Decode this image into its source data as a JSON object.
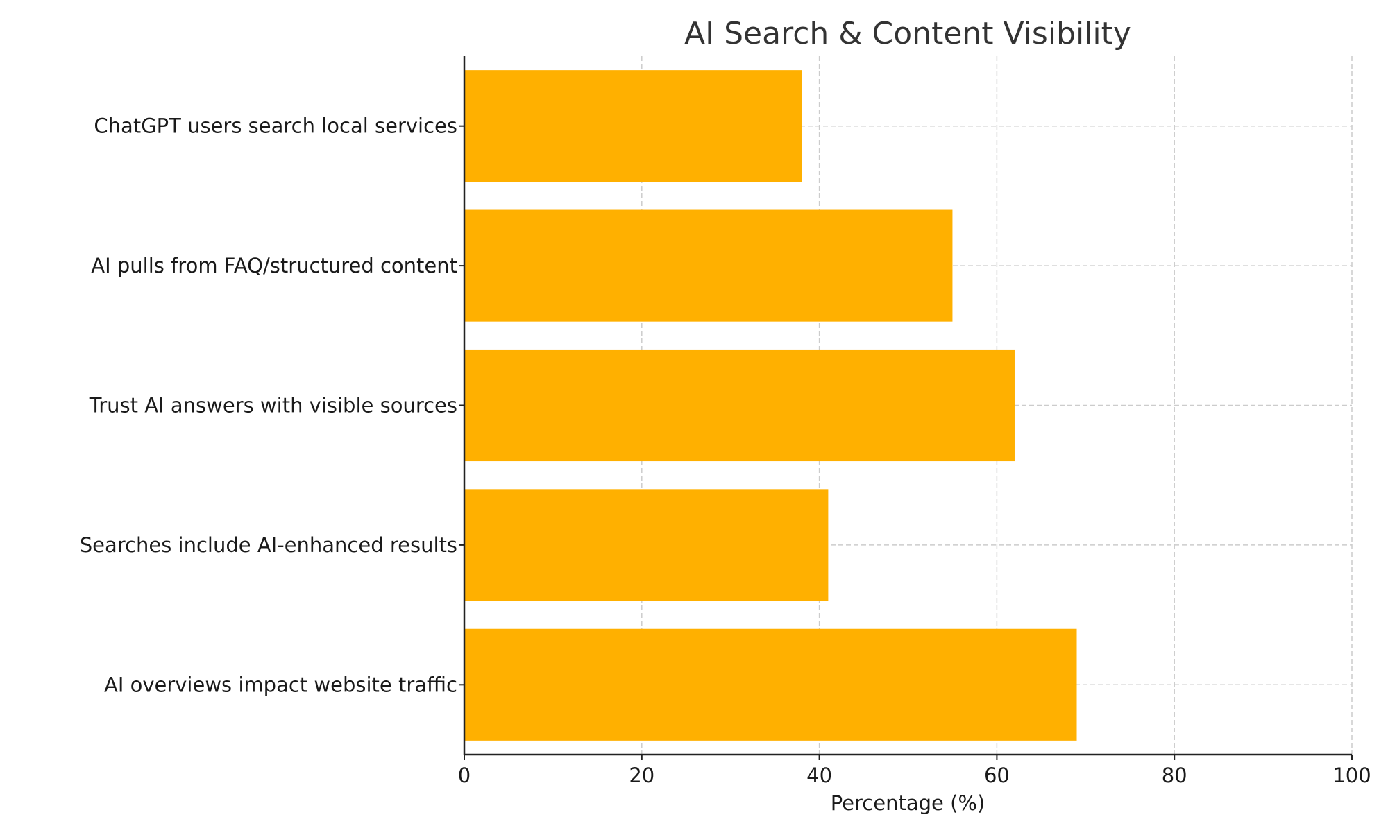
{
  "chart_data": {
    "type": "bar",
    "orientation": "horizontal",
    "title": "AI Search & Content Visibility",
    "xlabel": "Percentage (%)",
    "ylabel": "",
    "xlim": [
      0,
      100
    ],
    "xticks": [
      0,
      20,
      40,
      60,
      80,
      100
    ],
    "grid": true,
    "bar_color": "#FFB000",
    "categories": [
      "ChatGPT users search local services",
      "AI pulls from FAQ/structured content",
      "Trust AI answers with visible sources",
      "Searches include AI-enhanced results",
      "AI overviews impact website traffic"
    ],
    "values": [
      38,
      55,
      62,
      41,
      69
    ]
  }
}
